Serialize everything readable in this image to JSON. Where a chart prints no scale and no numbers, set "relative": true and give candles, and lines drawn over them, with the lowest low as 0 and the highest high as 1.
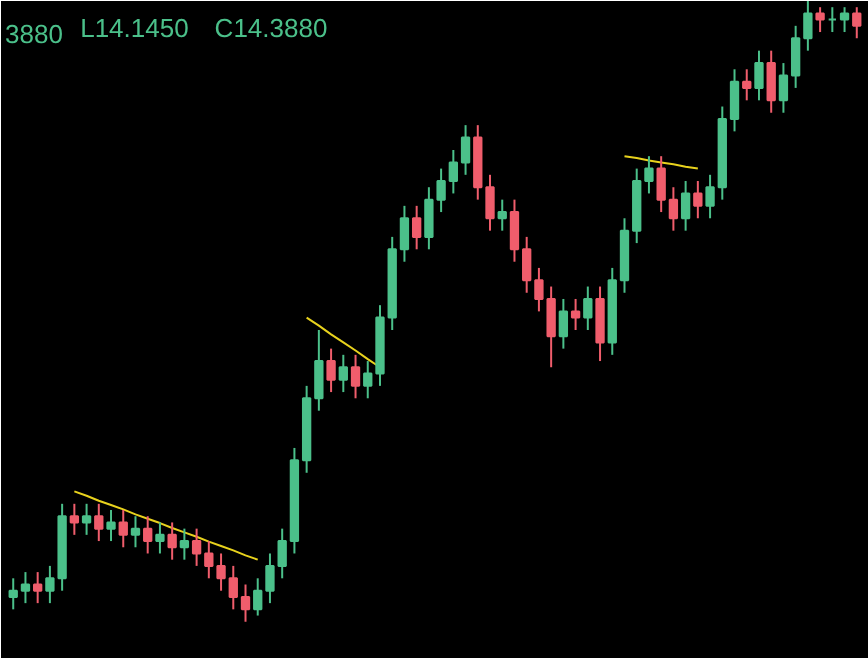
{
  "chart_data": {
    "type": "candlestick",
    "relative": true,
    "tick_labels": false,
    "grid": false,
    "annotations": [
      "3880",
      "L14.1450",
      "C14.3880"
    ],
    "categories": [
      null,
      null,
      null,
      null,
      null,
      null,
      null,
      null,
      null,
      null,
      null,
      null,
      null,
      null,
      null,
      null,
      null,
      null,
      null,
      null,
      null,
      null,
      null,
      null,
      null,
      null,
      null,
      null,
      null,
      null,
      null,
      null,
      null,
      null,
      null,
      null,
      null,
      null,
      null,
      null,
      null,
      null,
      null,
      null,
      null,
      null,
      null,
      null,
      null,
      null,
      null,
      null,
      null,
      null,
      null,
      null,
      null,
      null,
      null,
      null,
      null,
      null,
      null,
      null,
      null,
      null,
      null,
      null,
      null,
      null
    ],
    "ohlc": [
      [
        0.04,
        0.07,
        0.02,
        0.05
      ],
      [
        0.05,
        0.08,
        0.03,
        0.06
      ],
      [
        0.06,
        0.08,
        0.03,
        0.05
      ],
      [
        0.05,
        0.09,
        0.03,
        0.07
      ],
      [
        0.07,
        0.19,
        0.05,
        0.17
      ],
      [
        0.17,
        0.19,
        0.14,
        0.16
      ],
      [
        0.16,
        0.19,
        0.14,
        0.17
      ],
      [
        0.17,
        0.19,
        0.13,
        0.15
      ],
      [
        0.15,
        0.18,
        0.13,
        0.16
      ],
      [
        0.16,
        0.18,
        0.12,
        0.14
      ],
      [
        0.14,
        0.17,
        0.12,
        0.15
      ],
      [
        0.15,
        0.17,
        0.11,
        0.13
      ],
      [
        0.13,
        0.16,
        0.11,
        0.14
      ],
      [
        0.14,
        0.16,
        0.1,
        0.12
      ],
      [
        0.12,
        0.15,
        0.1,
        0.13
      ],
      [
        0.13,
        0.15,
        0.09,
        0.11
      ],
      [
        0.11,
        0.13,
        0.07,
        0.09
      ],
      [
        0.09,
        0.11,
        0.05,
        0.07
      ],
      [
        0.07,
        0.09,
        0.02,
        0.04
      ],
      [
        0.04,
        0.06,
        0,
        0.02
      ],
      [
        0.02,
        0.07,
        0.01,
        0.05
      ],
      [
        0.05,
        0.11,
        0.03,
        0.09
      ],
      [
        0.09,
        0.15,
        0.07,
        0.13
      ],
      [
        0.13,
        0.28,
        0.11,
        0.26
      ],
      [
        0.26,
        0.38,
        0.24,
        0.36
      ],
      [
        0.36,
        0.47,
        0.34,
        0.42
      ],
      [
        0.42,
        0.44,
        0.37,
        0.39
      ],
      [
        0.39,
        0.43,
        0.37,
        0.41
      ],
      [
        0.41,
        0.43,
        0.36,
        0.38
      ],
      [
        0.38,
        0.42,
        0.36,
        0.4
      ],
      [
        0.4,
        0.51,
        0.38,
        0.49
      ],
      [
        0.49,
        0.62,
        0.47,
        0.6
      ],
      [
        0.6,
        0.67,
        0.58,
        0.65
      ],
      [
        0.65,
        0.67,
        0.6,
        0.62
      ],
      [
        0.62,
        0.7,
        0.6,
        0.68
      ],
      [
        0.68,
        0.73,
        0.66,
        0.71
      ],
      [
        0.71,
        0.76,
        0.69,
        0.74
      ],
      [
        0.74,
        0.8,
        0.72,
        0.78
      ],
      [
        0.78,
        0.8,
        0.68,
        0.7
      ],
      [
        0.7,
        0.72,
        0.63,
        0.65
      ],
      [
        0.65,
        0.68,
        0.63,
        0.66
      ],
      [
        0.66,
        0.68,
        0.58,
        0.6
      ],
      [
        0.6,
        0.62,
        0.53,
        0.55
      ],
      [
        0.55,
        0.57,
        0.5,
        0.52
      ],
      [
        0.52,
        0.54,
        0.41,
        0.46
      ],
      [
        0.46,
        0.52,
        0.44,
        0.5
      ],
      [
        0.5,
        0.52,
        0.47,
        0.49
      ],
      [
        0.49,
        0.54,
        0.47,
        0.52
      ],
      [
        0.52,
        0.54,
        0.42,
        0.45
      ],
      [
        0.45,
        0.57,
        0.43,
        0.55
      ],
      [
        0.55,
        0.65,
        0.53,
        0.63
      ],
      [
        0.63,
        0.73,
        0.61,
        0.71
      ],
      [
        0.71,
        0.75,
        0.69,
        0.73
      ],
      [
        0.73,
        0.75,
        0.66,
        0.68
      ],
      [
        0.68,
        0.7,
        0.63,
        0.65
      ],
      [
        0.65,
        0.71,
        0.63,
        0.69
      ],
      [
        0.69,
        0.71,
        0.65,
        0.67
      ],
      [
        0.67,
        0.72,
        0.65,
        0.7
      ],
      [
        0.7,
        0.83,
        0.68,
        0.81
      ],
      [
        0.81,
        0.89,
        0.79,
        0.87
      ],
      [
        0.87,
        0.89,
        0.84,
        0.86
      ],
      [
        0.86,
        0.92,
        0.84,
        0.9
      ],
      [
        0.9,
        0.92,
        0.82,
        0.84
      ],
      [
        0.84,
        0.9,
        0.82,
        0.88
      ],
      [
        0.88,
        0.96,
        0.86,
        0.94
      ],
      [
        0.94,
        1,
        0.92,
        0.98
      ],
      [
        0.98,
        0.99,
        0.95,
        0.97
      ],
      [
        0.97,
        0.99,
        0.95,
        0.97
      ],
      [
        0.97,
        0.99,
        0.95,
        0.98
      ],
      [
        0.98,
        0.99,
        0.94,
        0.96
      ]
    ],
    "colors": [
      "#4bc08a",
      "#4bc08a",
      "#f05d6c",
      "#4bc08a",
      "#4bc08a",
      "#f05d6c",
      "#4bc08a",
      "#f05d6c",
      "#4bc08a",
      "#f05d6c",
      "#4bc08a",
      "#f05d6c",
      "#4bc08a",
      "#f05d6c",
      "#4bc08a",
      "#f05d6c",
      "#f05d6c",
      "#f05d6c",
      "#f05d6c",
      "#f05d6c",
      "#4bc08a",
      "#4bc08a",
      "#4bc08a",
      "#4bc08a",
      "#4bc08a",
      "#4bc08a",
      "#f05d6c",
      "#4bc08a",
      "#f05d6c",
      "#4bc08a",
      "#4bc08a",
      "#4bc08a",
      "#4bc08a",
      "#f05d6c",
      "#4bc08a",
      "#4bc08a",
      "#4bc08a",
      "#4bc08a",
      "#f05d6c",
      "#f05d6c",
      "#4bc08a",
      "#f05d6c",
      "#f05d6c",
      "#f05d6c",
      "#f05d6c",
      "#4bc08a",
      "#f05d6c",
      "#4bc08a",
      "#f05d6c",
      "#4bc08a",
      "#4bc08a",
      "#4bc08a",
      "#4bc08a",
      "#f05d6c",
      "#f05d6c",
      "#4bc08a",
      "#f05d6c",
      "#4bc08a",
      "#4bc08a",
      "#4bc08a",
      "#f05d6c",
      "#4bc08a",
      "#f05d6c",
      "#4bc08a",
      "#4bc08a",
      "#4bc08a",
      "#f05d6c",
      "#4bc08a",
      "#4bc08a",
      "#f05d6c"
    ],
    "series": [
      {
        "type": "line",
        "color": "#e8d21d",
        "values": [
          null,
          null,
          null,
          null,
          null,
          0.21,
          0.203,
          0.195,
          0.188,
          0.181,
          0.173,
          0.166,
          0.159,
          0.151,
          0.144,
          0.137,
          0.129,
          0.122,
          0.115,
          0.107,
          0.1,
          null,
          null,
          null,
          null,
          null,
          null,
          null,
          null,
          null,
          null,
          null,
          null,
          null,
          null,
          null,
          null,
          null,
          null,
          null,
          null,
          null,
          null,
          null,
          null,
          null,
          null,
          null,
          null,
          null,
          null,
          null,
          null,
          null,
          null,
          null,
          null,
          null,
          null,
          null,
          null,
          null,
          null,
          null,
          null,
          null,
          null,
          null,
          null,
          null
        ]
      },
      {
        "type": "line",
        "color": "#e8d21d",
        "values": [
          null,
          null,
          null,
          null,
          null,
          null,
          null,
          null,
          null,
          null,
          null,
          null,
          null,
          null,
          null,
          null,
          null,
          null,
          null,
          null,
          null,
          null,
          null,
          null,
          0.49,
          0.477,
          0.463,
          0.45,
          0.437,
          0.423,
          0.41,
          null,
          null,
          null,
          null,
          null,
          null,
          null,
          null,
          null,
          null,
          null,
          null,
          null,
          null,
          null,
          null,
          null,
          null,
          null,
          null,
          null,
          null,
          null,
          null,
          null,
          null,
          null,
          null,
          null,
          null,
          null,
          null,
          null,
          null,
          null,
          null,
          null,
          null,
          null
        ]
      },
      {
        "type": "line",
        "color": "#e8d21d",
        "values": [
          null,
          null,
          null,
          null,
          null,
          null,
          null,
          null,
          null,
          null,
          null,
          null,
          null,
          null,
          null,
          null,
          null,
          null,
          null,
          null,
          null,
          null,
          null,
          null,
          null,
          null,
          null,
          null,
          null,
          null,
          null,
          null,
          null,
          null,
          null,
          null,
          null,
          null,
          null,
          null,
          null,
          null,
          null,
          null,
          null,
          null,
          null,
          null,
          null,
          null,
          0.75,
          0.747,
          0.743,
          0.74,
          0.737,
          0.733,
          0.73,
          null,
          null,
          null,
          null,
          null,
          null,
          null,
          null,
          null,
          null,
          null,
          null,
          null
        ]
      }
    ]
  }
}
